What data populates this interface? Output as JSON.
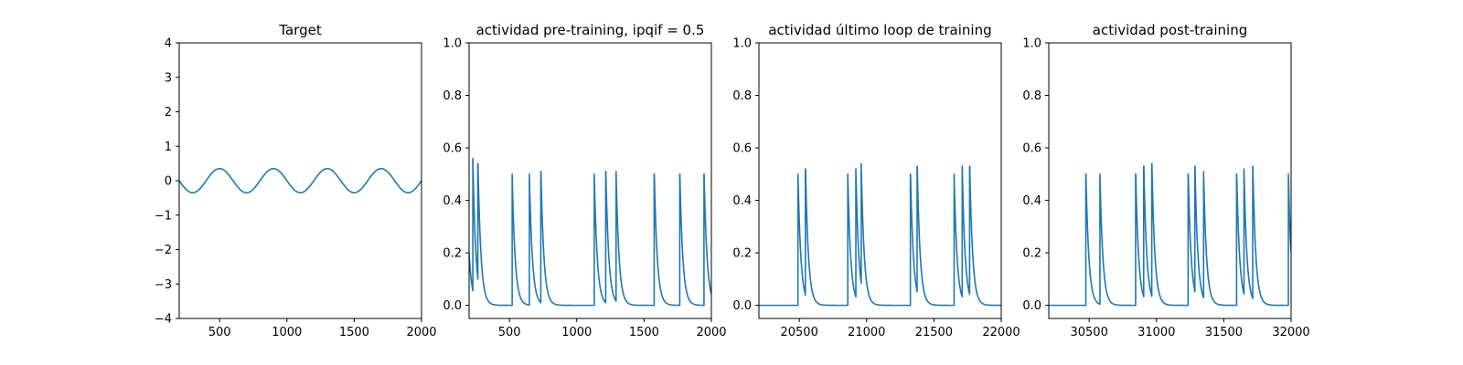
{
  "colors": {
    "series": "#1f77b4"
  },
  "chart_data": [
    {
      "type": "line",
      "title": "Target",
      "xlabel": "",
      "ylabel": "",
      "xlim": [
        200,
        2000
      ],
      "ylim": [
        -4,
        4
      ],
      "xticks": [
        500,
        1000,
        1500,
        2000
      ],
      "yticks": [
        -4,
        -3,
        -2,
        -1,
        0,
        1,
        2,
        3,
        4
      ],
      "grid": false,
      "series": [
        {
          "kind": "sine",
          "amplitude": 0.35,
          "period": 400,
          "start_x": 200,
          "end_x": 2000,
          "start_phase": "descending-from-zero"
        }
      ]
    },
    {
      "type": "line",
      "title": "actividad pre-training, ipqif = 0.5",
      "xlabel": "",
      "ylabel": "",
      "xlim": [
        200,
        2000
      ],
      "ylim": [
        -0.05,
        1.0
      ],
      "xticks": [
        500,
        1000,
        1500,
        2000
      ],
      "yticks": [
        0.0,
        0.2,
        0.4,
        0.6,
        0.8,
        1.0
      ],
      "grid": false,
      "series": [
        {
          "kind": "spike-train",
          "start_x": 200,
          "end_x": 2000,
          "initial_value": 0.2,
          "baseline": 0.0,
          "decay_tau": 22,
          "spikes": [
            {
              "x": 228,
              "peak": 0.56
            },
            {
              "x": 265,
              "peak": 0.54
            },
            {
              "x": 520,
              "peak": 0.5
            },
            {
              "x": 648,
              "peak": 0.5
            },
            {
              "x": 733,
              "peak": 0.51
            },
            {
              "x": 1130,
              "peak": 0.5
            },
            {
              "x": 1215,
              "peak": 0.51
            },
            {
              "x": 1292,
              "peak": 0.51
            },
            {
              "x": 1575,
              "peak": 0.5
            },
            {
              "x": 1765,
              "peak": 0.5
            },
            {
              "x": 1945,
              "peak": 0.5
            }
          ]
        }
      ]
    },
    {
      "type": "line",
      "title": "actividad último loop de training",
      "xlabel": "",
      "ylabel": "",
      "xlim": [
        20200,
        22000
      ],
      "ylim": [
        -0.05,
        1.0
      ],
      "xticks": [
        20500,
        21000,
        21500,
        22000
      ],
      "yticks": [
        0.0,
        0.2,
        0.4,
        0.6,
        0.8,
        1.0
      ],
      "grid": false,
      "series": [
        {
          "kind": "spike-train",
          "start_x": 20200,
          "end_x": 22000,
          "initial_value": 0.0,
          "baseline": 0.0,
          "decay_tau": 22,
          "spikes": [
            {
              "x": 20490,
              "peak": 0.5
            },
            {
              "x": 20545,
              "peak": 0.52
            },
            {
              "x": 20860,
              "peak": 0.5
            },
            {
              "x": 20920,
              "peak": 0.52
            },
            {
              "x": 20960,
              "peak": 0.54
            },
            {
              "x": 21325,
              "peak": 0.5
            },
            {
              "x": 21375,
              "peak": 0.53
            },
            {
              "x": 21650,
              "peak": 0.5
            },
            {
              "x": 21710,
              "peak": 0.53
            },
            {
              "x": 21765,
              "peak": 0.53
            }
          ]
        }
      ]
    },
    {
      "type": "line",
      "title": "actividad post-training",
      "xlabel": "",
      "ylabel": "",
      "xlim": [
        30200,
        32000
      ],
      "ylim": [
        -0.05,
        1.0
      ],
      "xticks": [
        30500,
        31000,
        31500,
        32000
      ],
      "yticks": [
        0.0,
        0.2,
        0.4,
        0.6,
        0.8,
        1.0
      ],
      "grid": false,
      "series": [
        {
          "kind": "spike-train",
          "start_x": 30200,
          "end_x": 32000,
          "initial_value": 0.0,
          "baseline": 0.0,
          "decay_tau": 22,
          "spikes": [
            {
              "x": 30475,
              "peak": 0.5
            },
            {
              "x": 30580,
              "peak": 0.5
            },
            {
              "x": 30845,
              "peak": 0.5
            },
            {
              "x": 30905,
              "peak": 0.53
            },
            {
              "x": 30965,
              "peak": 0.54
            },
            {
              "x": 31235,
              "peak": 0.5
            },
            {
              "x": 31285,
              "peak": 0.53
            },
            {
              "x": 31350,
              "peak": 0.51
            },
            {
              "x": 31595,
              "peak": 0.5
            },
            {
              "x": 31650,
              "peak": 0.52
            },
            {
              "x": 31715,
              "peak": 0.53
            },
            {
              "x": 31980,
              "peak": 0.5
            }
          ]
        }
      ]
    }
  ]
}
